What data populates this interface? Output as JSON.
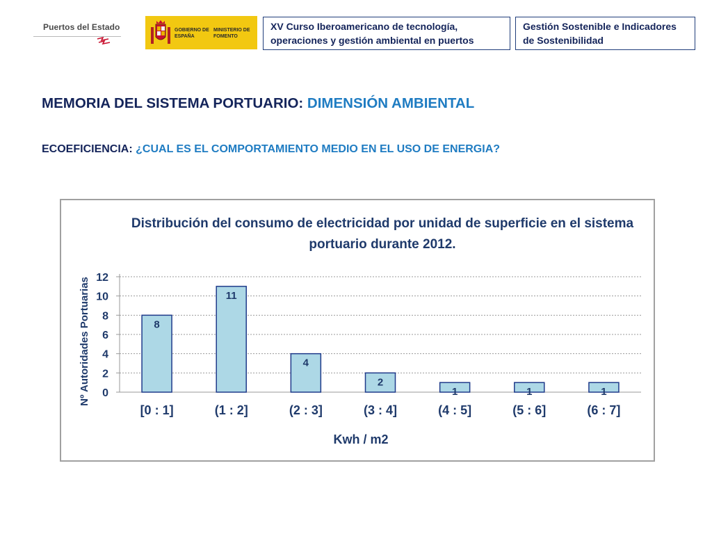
{
  "header": {
    "logo_puertos": "Puertos del Estado",
    "logo_gobierno": "GOBIERNO DE ESPAÑA",
    "logo_ministerio": "MINISTERIO DE FOMENTO",
    "course_box": "XV Curso Iberoamericano de tecnología, operaciones y gestión ambiental en puertos",
    "topic_box": "Gestión Sostenible e Indicadores de Sostenibilidad"
  },
  "slide": {
    "title_main": "MEMORIA DEL SISTEMA PORTUARIO:",
    "title_accent": "DIMENSIÓN AMBIENTAL",
    "subtitle_main": "ECOEFICIENCIA:",
    "subtitle_accent": "¿CUAL ES EL COMPORTAMIENTO MEDIO EN EL USO DE ENERGIA?"
  },
  "colors": {
    "navy": "#14245a",
    "accent_blue": "#1f7cc2",
    "bar_fill": "#add8e6",
    "bar_stroke": "#1f3a8a",
    "logo_yellow": "#f2c811"
  },
  "chart_data": {
    "type": "bar",
    "title": "Distribución del consumo de electricidad por unidad de superficie en el sistema portuario durante 2012.",
    "title_lines": [
      "Distribución del consumo de electricidad por unidad de superficie en el sistema",
      "portuario durante 2012."
    ],
    "categories": [
      "[0 : 1]",
      "(1 : 2]",
      "(2 : 3]",
      "(3 : 4]",
      "(4 : 5]",
      "(5 : 6]",
      "(6 : 7]"
    ],
    "values": [
      8,
      11,
      4,
      2,
      1,
      1,
      1
    ],
    "data_labels": true,
    "xlabel": "Kwh / m2",
    "ylabel": "Nº Autoridades Portuarias",
    "ylim": [
      0,
      12
    ],
    "yticks": [
      0,
      2,
      4,
      6,
      8,
      10,
      12
    ],
    "grid": "horizontal dotted",
    "legend": "none"
  }
}
